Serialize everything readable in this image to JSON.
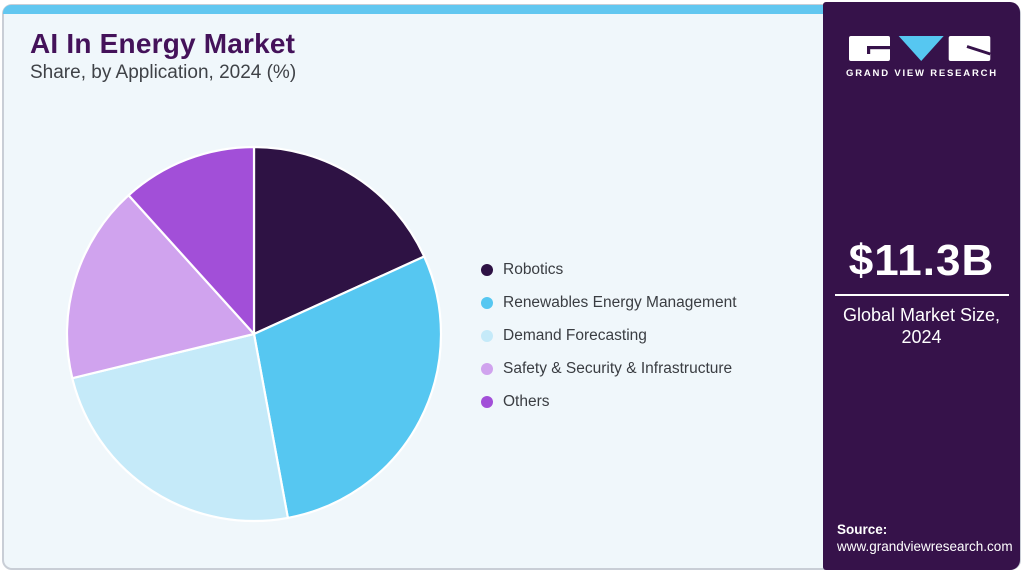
{
  "header": {
    "title": "AI In Energy Market",
    "subtitle": "Share, by Application, 2024 (%)"
  },
  "chart_data": {
    "type": "pie",
    "title": "AI In Energy Market Share, by Application, 2024 (%)",
    "categories": [
      "Robotics",
      "Renewables Energy Management",
      "Demand Forecasting",
      "Safety & Security & Infrastructure",
      "Others"
    ],
    "values": [
      18.2,
      28.9,
      24.1,
      17.1,
      11.7
    ],
    "unit": "%",
    "colors": [
      "#2e1244",
      "#56c7f1",
      "#c5eaf9",
      "#d0a3ee",
      "#a24fd8"
    ],
    "start_angle_deg": 0,
    "direction": "clockwise",
    "legend_position": "right",
    "separator_color": "#ffffff"
  },
  "sidebar": {
    "logo_text": "GRAND VIEW RESEARCH",
    "market_size": "$11.3B",
    "market_caption_line1": "Global Market Size,",
    "market_caption_line2": "2024",
    "source_label": "Source:",
    "source_url": "www.grandviewresearch.com"
  },
  "theme": {
    "page_bg": "#ffffff",
    "card_bg": "#f0f7fb",
    "card_border": "#c9ced6",
    "top_bar": "#62c7f0",
    "sidebar_bg": "#36124a",
    "title_color": "#44125a",
    "subtitle_color": "#3f4247",
    "legend_text": "#3a3d42",
    "logo_accent": "#56c7f1"
  }
}
